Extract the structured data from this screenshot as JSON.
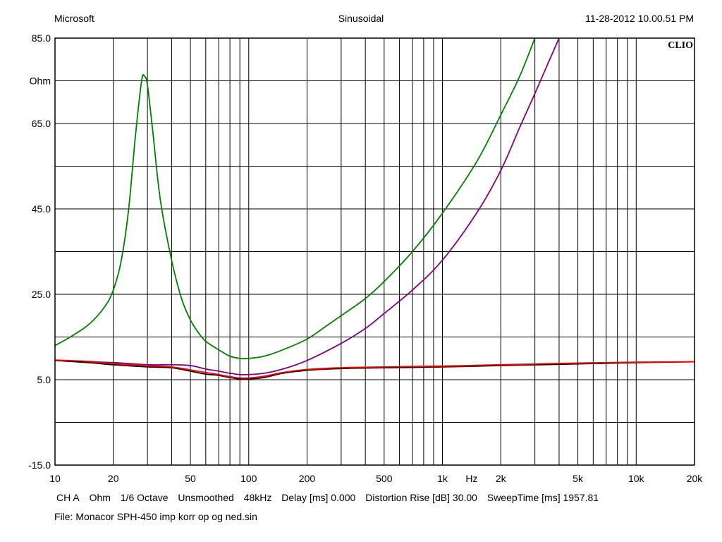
{
  "header": {
    "left": "Microsoft",
    "center": "Sinusoidal",
    "right": "11-28-2012 10.00.51 PM"
  },
  "footer": {
    "channel": "CH A",
    "unit": "Ohm",
    "octave": "1/6 Octave",
    "smoothing": "Unsmoothed",
    "rate": "48kHz",
    "delay": "Delay [ms] 0.000",
    "distortion": "Distortion Rise [dB] 30.00",
    "sweep": "SweepTime [ms] 1957.81",
    "file": "File: Monacor SPH-450 imp korr op og ned.sin"
  },
  "chart_data": {
    "type": "line",
    "brand": "CLIO",
    "y_unit_label": "Ohm",
    "x_unit_label": "Hz",
    "xscale": "log",
    "xlim": [
      10,
      20000
    ],
    "ylim": [
      -15,
      85
    ],
    "grid": true,
    "y_ticks": [
      {
        "value": 85,
        "label": "85.0"
      },
      {
        "value": 65,
        "label": "65.0"
      },
      {
        "value": 45,
        "label": "45.0"
      },
      {
        "value": 25,
        "label": "25.0"
      },
      {
        "value": 5,
        "label": "5.0"
      },
      {
        "value": -15,
        "label": "-15.0"
      }
    ],
    "x_ticks": [
      {
        "value": 10,
        "label": "10"
      },
      {
        "value": 20,
        "label": "20"
      },
      {
        "value": 50,
        "label": "50"
      },
      {
        "value": 100,
        "label": "100"
      },
      {
        "value": 200,
        "label": "200"
      },
      {
        "value": 500,
        "label": "500"
      },
      {
        "value": 1000,
        "label": "1k"
      },
      {
        "value": 2000,
        "label": "2k"
      },
      {
        "value": 5000,
        "label": "5k"
      },
      {
        "value": 10000,
        "label": "10k"
      },
      {
        "value": 20000,
        "label": "20k"
      }
    ],
    "series": [
      {
        "color": "#008000",
        "x": [
          10,
          12,
          15,
          18,
          20,
          22,
          24,
          26,
          28,
          29,
          30,
          32,
          35,
          40,
          45,
          50,
          55,
          60,
          70,
          80,
          90,
          100,
          120,
          150,
          200,
          250,
          300,
          400,
          500,
          700,
          1000,
          1500,
          2000,
          2500,
          3000
        ],
        "y": [
          13,
          15,
          18,
          22,
          26,
          33,
          45,
          62,
          75,
          76,
          74,
          63,
          47,
          33,
          24,
          19,
          16,
          14,
          12,
          10.5,
          10,
          10,
          10.5,
          12,
          14.5,
          17.5,
          20,
          24,
          28,
          35,
          44,
          56,
          67,
          76,
          85
        ]
      },
      {
        "color": "#800080",
        "x": [
          10,
          20,
          30,
          40,
          50,
          60,
          70,
          80,
          90,
          100,
          120,
          150,
          200,
          300,
          400,
          500,
          700,
          1000,
          1500,
          2000,
          2500,
          3000,
          3500,
          4000
        ],
        "y": [
          9.5,
          9,
          8.5,
          8.5,
          8.3,
          7.5,
          7,
          6.5,
          6.2,
          6.2,
          6.5,
          7.5,
          9.5,
          13.5,
          17,
          20.5,
          26,
          33,
          44,
          54,
          64,
          72,
          79,
          85
        ]
      },
      {
        "color": "#000000",
        "x": [
          10,
          15,
          20,
          30,
          40,
          50,
          60,
          70,
          80,
          90,
          100,
          120,
          150,
          200,
          300,
          500,
          1000,
          2000,
          5000,
          10000,
          20000
        ],
        "y": [
          9.5,
          9.0,
          8.5,
          8.0,
          7.8,
          7.0,
          6.3,
          6.0,
          5.5,
          5.2,
          5.2,
          5.5,
          6.5,
          7.2,
          7.6,
          7.8,
          8.0,
          8.3,
          8.7,
          9.0,
          9.2
        ]
      },
      {
        "color": "#ff0000",
        "x": [
          10,
          15,
          20,
          30,
          40,
          50,
          60,
          70,
          80,
          90,
          100,
          120,
          150,
          200,
          300,
          500,
          1000,
          2000,
          5000,
          10000,
          20000
        ],
        "y": [
          9.6,
          9.3,
          8.8,
          8.3,
          8.0,
          7.3,
          6.7,
          6.2,
          5.7,
          5.4,
          5.4,
          5.8,
          6.7,
          7.4,
          7.8,
          8.0,
          8.2,
          8.5,
          8.9,
          9.1,
          9.2
        ]
      }
    ]
  }
}
